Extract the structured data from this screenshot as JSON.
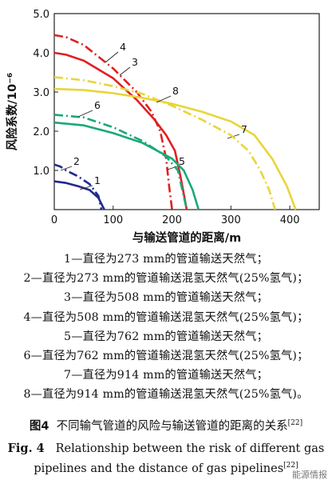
{
  "chart_data": {
    "type": "line",
    "xlabel": "与输送管道的距离/m",
    "ylabel": "风险系数/10⁻⁶",
    "xlim": [
      0,
      450
    ],
    "ylim": [
      0,
      5.0
    ],
    "xticks": [
      "0",
      "100",
      "200",
      "300",
      "400"
    ],
    "yticks": [
      "1.0",
      "2.0",
      "3.0",
      "4.0",
      "5.0"
    ],
    "grid": false,
    "series": [
      {
        "name": "1",
        "color": "#1f2a8c",
        "dash": false,
        "x": [
          0,
          20,
          40,
          60,
          75,
          85
        ],
        "y": [
          0.72,
          0.68,
          0.6,
          0.5,
          0.3,
          0.0
        ]
      },
      {
        "name": "2",
        "color": "#1f2a8c",
        "dash": true,
        "x": [
          0,
          10,
          20,
          40,
          60,
          75,
          80
        ],
        "y": [
          1.15,
          1.1,
          1.0,
          0.85,
          0.65,
          0.35,
          0.0
        ]
      },
      {
        "name": "3",
        "color": "#e02020",
        "dash": false,
        "x": [
          0,
          20,
          50,
          100,
          140,
          170,
          190,
          205,
          215,
          225
        ],
        "y": [
          4.0,
          3.95,
          3.8,
          3.35,
          2.8,
          2.3,
          1.9,
          1.5,
          0.8,
          0.0
        ]
      },
      {
        "name": "4",
        "color": "#e02020",
        "dash": true,
        "x": [
          0,
          20,
          50,
          100,
          140,
          165,
          180,
          190,
          195,
          200
        ],
        "y": [
          4.45,
          4.4,
          4.2,
          3.6,
          3.0,
          2.5,
          2.0,
          1.3,
          0.6,
          0.0
        ]
      },
      {
        "name": "5",
        "color": "#1aa878",
        "dash": false,
        "x": [
          0,
          50,
          100,
          150,
          200,
          220,
          235,
          245
        ],
        "y": [
          2.22,
          2.15,
          1.95,
          1.7,
          1.3,
          1.0,
          0.5,
          0.0
        ]
      },
      {
        "name": "6",
        "color": "#1aa878",
        "dash": true,
        "x": [
          0,
          50,
          100,
          150,
          190,
          210,
          225
        ],
        "y": [
          2.42,
          2.35,
          2.1,
          1.75,
          1.35,
          1.0,
          0.0
        ]
      },
      {
        "name": "7",
        "color": "#e8d53a",
        "dash": false,
        "x": [
          0,
          50,
          100,
          150,
          200,
          250,
          300,
          340,
          370,
          395,
          410
        ],
        "y": [
          3.08,
          3.05,
          2.97,
          2.85,
          2.7,
          2.5,
          2.25,
          1.9,
          1.3,
          0.6,
          0.0
        ]
      },
      {
        "name": "8",
        "color": "#e8d53a",
        "dash": true,
        "x": [
          0,
          50,
          100,
          150,
          200,
          250,
          300,
          330,
          350,
          365,
          375
        ],
        "y": [
          3.38,
          3.3,
          3.15,
          2.95,
          2.65,
          2.3,
          1.9,
          1.5,
          1.0,
          0.5,
          0.0
        ]
      }
    ]
  },
  "legend_lines": [
    "1—直径为273 mm的管道输送天然气；",
    "2—直径为273 mm的管道输送混氢天然气(25%氢气)；",
    "3—直径为508 mm的管道输送天然气；",
    "4—直径为508 mm的管道输送混氢天然气(25%氢气)；",
    "5—直径为762 mm的管道输送天然气；",
    "6—直径为762 mm的管道输送混氢天然气(25%氢气)；",
    "7—直径为914 mm的管道输送天然气；",
    "8—直径为914 mm的管道输送混氢天然气(25%氢气)。"
  ],
  "caption": {
    "cn_label": "图4",
    "cn_text": "不同输气管道的风险与输送管道的距离的关系",
    "cn_ref": "[22]",
    "en_label": "Fig. 4",
    "en_text_1": "Relationship between the risk of different gas",
    "en_text_2": "pipelines and the distance of gas pipelines",
    "en_ref": "[22]"
  },
  "watermark": "能源情报"
}
